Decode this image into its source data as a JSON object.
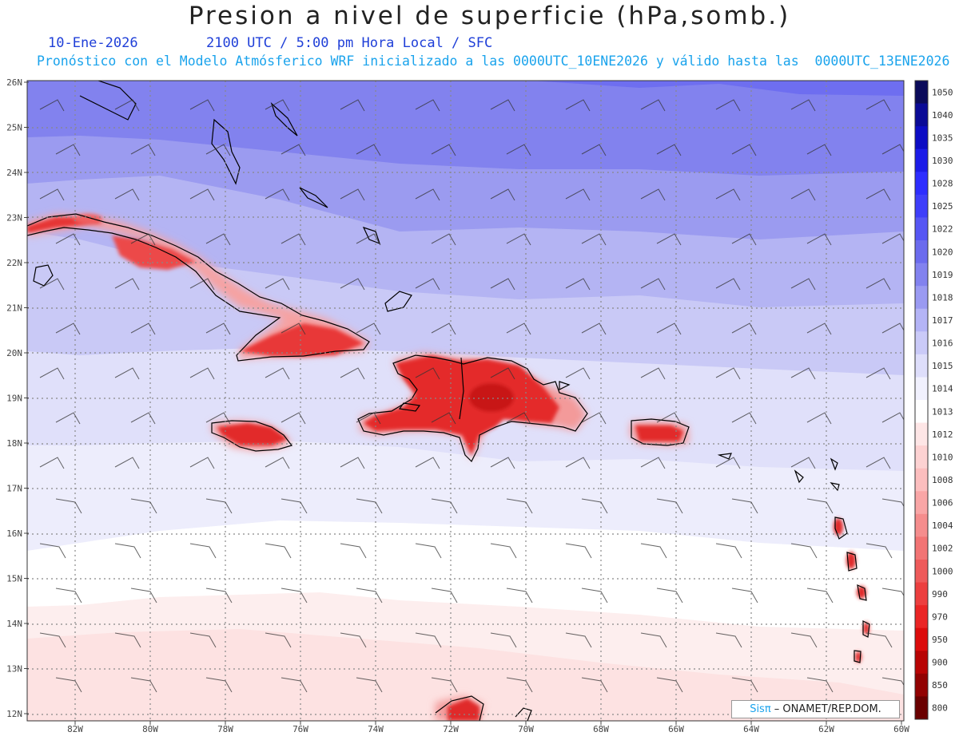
{
  "title": "Presion a nivel de superficie (hPa,somb.)",
  "date": "10-Ene-2026",
  "time_label": "2100 UTC / 5:00 pm Hora Local / SFC",
  "forecast_note": "Pronóstico con el Modelo Atmósferico WRF inicializado a las 0000UTC_10ENE2026 y válido hasta las  0000UTC_13ENE2026",
  "lat_labels": [
    "26N",
    "25N",
    "24N",
    "23N",
    "22N",
    "21N",
    "20N",
    "19N",
    "18N",
    "17N",
    "16N",
    "15N",
    "14N",
    "13N",
    "12N"
  ],
  "lon_labels": [
    "82W",
    "80W",
    "78W",
    "76W",
    "74W",
    "72W",
    "70W",
    "68W",
    "66W",
    "64W",
    "62W",
    "60W"
  ],
  "legend": {
    "levels": [
      "1050",
      "1040",
      "1035",
      "1030",
      "1028",
      "1025",
      "1022",
      "1020",
      "1019",
      "1018",
      "1017",
      "1016",
      "1015",
      "1014",
      "1013",
      "1012",
      "1010",
      "1008",
      "1006",
      "1004",
      "1002",
      "1000",
      "990",
      "970",
      "950",
      "900",
      "850",
      "800"
    ],
    "colors": [
      "#0a0a5a",
      "#0a0a96",
      "#0c0cc4",
      "#1c1ce8",
      "#2d2dff",
      "#3e3efa",
      "#5656f4",
      "#6b6bee",
      "#8282ef",
      "#9a9af2",
      "#b4b4f6",
      "#cacaf8",
      "#dedefb",
      "#f1f1fe",
      "#ffffff",
      "#fee6e6",
      "#fdd2d2",
      "#fcbebe",
      "#f9a6a6",
      "#f58d8d",
      "#f27474",
      "#ee5a5a",
      "#ec3f3f",
      "#ea2525",
      "#dc0c0c",
      "#b80404",
      "#920202",
      "#6a0000"
    ]
  },
  "credit": {
    "sis": "Sisπ",
    "rest": " – ONAMET/REP.DOM."
  }
}
